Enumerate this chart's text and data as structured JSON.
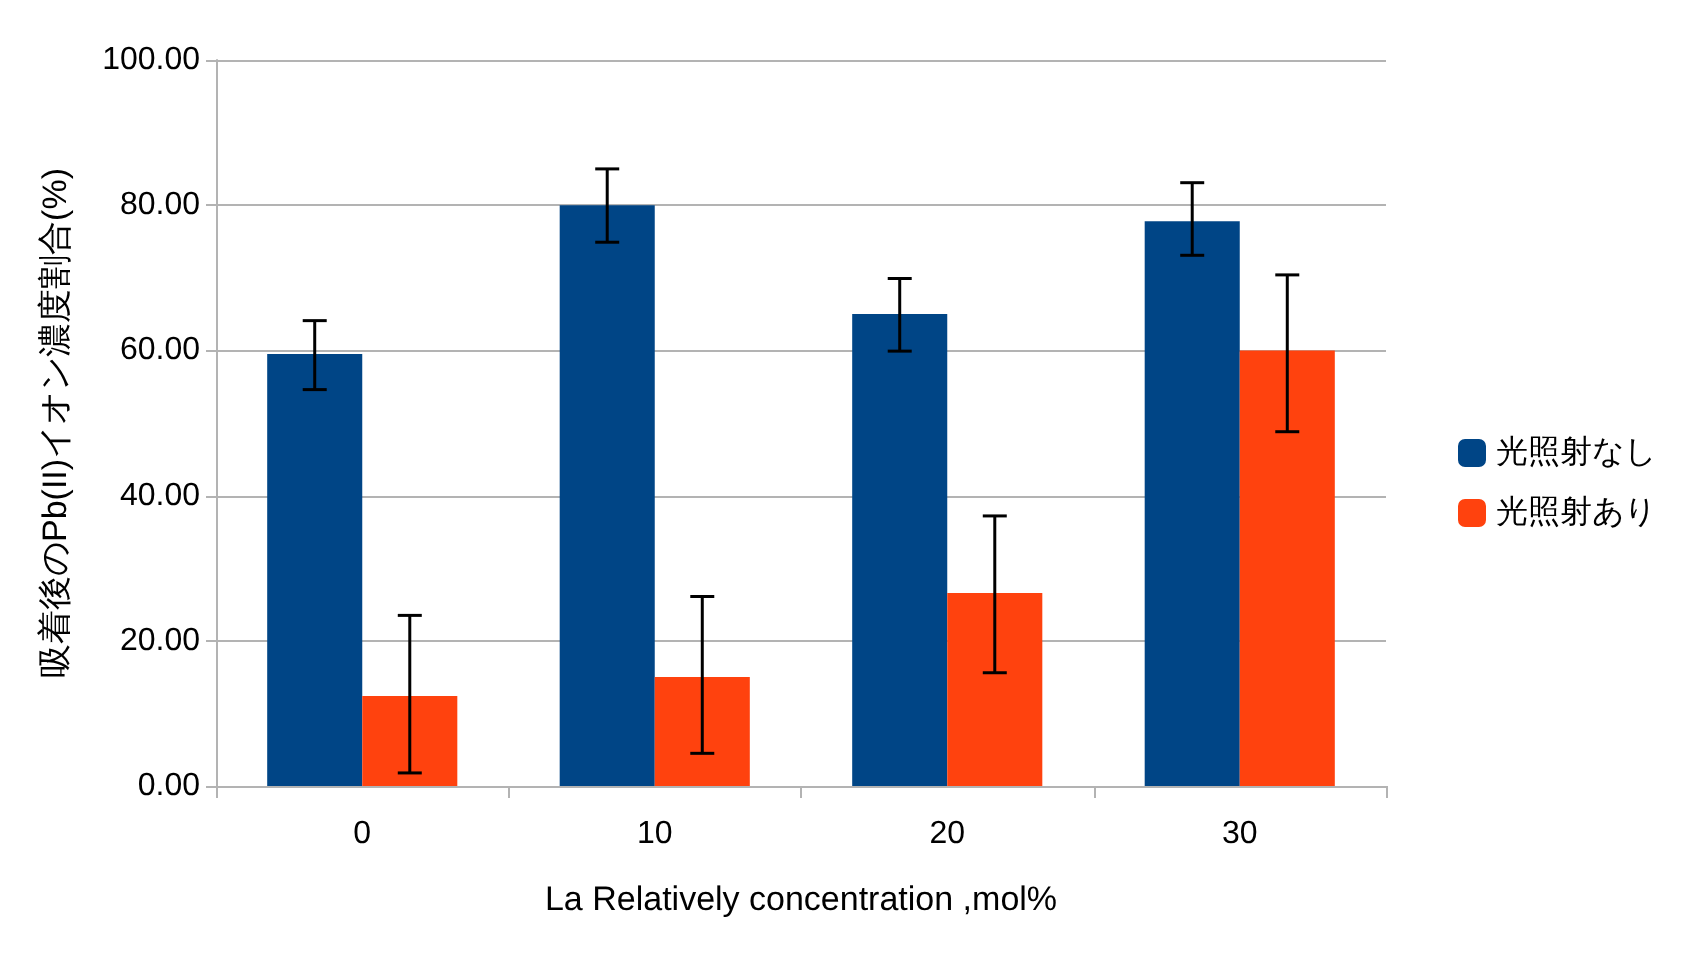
{
  "chart_data": {
    "type": "bar",
    "xlabel": "La Relatively concentration ,mol%",
    "ylabel": "吸着後のPb(II)イオン濃度割合(%)",
    "categories": [
      "0",
      "10",
      "20",
      "30"
    ],
    "series": [
      {
        "name": "光照射なし",
        "color": "#004586",
        "values": [
          59.5,
          80,
          65,
          77.8
        ],
        "errors": [
          [
            54.6,
            64.1
          ],
          [
            74.9,
            85
          ],
          [
            59.9,
            69.9
          ],
          [
            73.1,
            83.1
          ]
        ]
      },
      {
        "name": "光照射あり",
        "color": "#ff420e",
        "values": [
          12.4,
          15,
          26.6,
          60
        ],
        "errors": [
          [
            1.8,
            23.5
          ],
          [
            4.5,
            26.1
          ],
          [
            15.6,
            37.2
          ],
          [
            48.8,
            70.4
          ]
        ]
      }
    ],
    "ylim": [
      0,
      100
    ],
    "yticks": [
      {
        "value": 0,
        "label": "0.00"
      },
      {
        "value": 20,
        "label": "20.00"
      },
      {
        "value": 40,
        "label": "40.00"
      },
      {
        "value": 60,
        "label": "60.00"
      },
      {
        "value": 80,
        "label": "80.00"
      },
      {
        "value": 100,
        "label": "100.00"
      }
    ],
    "grid": "y",
    "legend": "right"
  }
}
